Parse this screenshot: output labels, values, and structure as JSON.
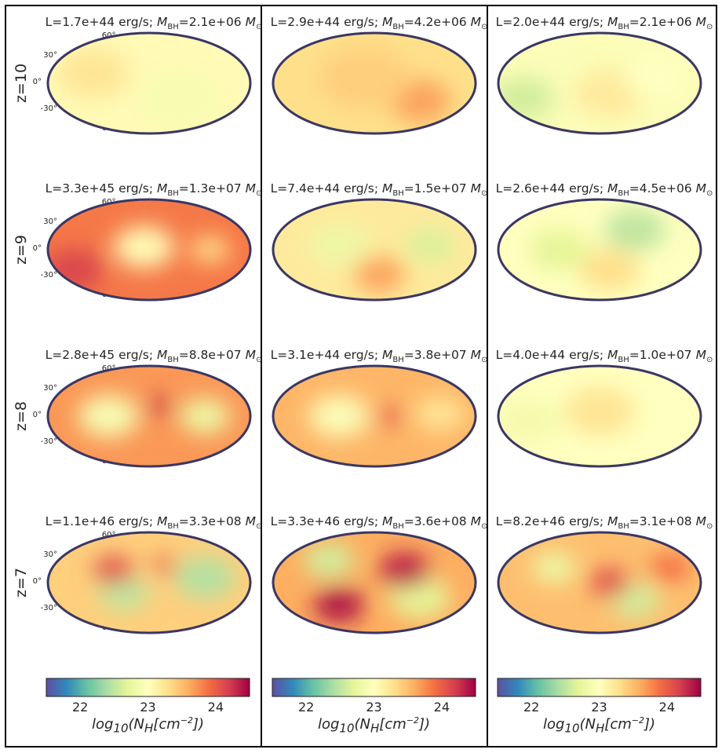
{
  "chart_data": {
    "type": "heatmap",
    "projection": "mollweide",
    "row_labels": [
      "z=10",
      "z=9",
      "z=8",
      "z=7"
    ],
    "latitude_ticks": [
      "60°",
      "30°",
      "0°",
      "-30°",
      "-60°"
    ],
    "colormap": {
      "name": "Spectral_r",
      "range": [
        21.5,
        24.5
      ],
      "ticks": [
        "22",
        "23",
        "24"
      ],
      "tick_values": [
        22,
        23,
        24
      ],
      "label": "log10(NH[cm^-2])",
      "label_parts": {
        "prefix": "log",
        "sub": "10",
        "open": "(N",
        "sub2": "H",
        "mid": "[cm",
        "sup": "−2",
        "close": "])"
      },
      "stops": [
        "#5e4fa2",
        "#3288bd",
        "#66c2a5",
        "#abdda4",
        "#e6f598",
        "#ffffbf",
        "#fee08b",
        "#fdae61",
        "#f46d43",
        "#d53e4f",
        "#9e0142"
      ]
    },
    "panels": [
      {
        "row": 0,
        "col": 0,
        "L": "L=1.7e+44 erg/s;",
        "MBH": "=2.1e+06",
        "msun": "M",
        "sun": "⊙",
        "base": 23.05,
        "blobs": [
          {
            "x": -0.55,
            "y": 0.2,
            "r": 0.35,
            "v": 0.2
          },
          {
            "x": 0.3,
            "y": -0.3,
            "r": 0.4,
            "v": -0.15
          }
        ]
      },
      {
        "row": 0,
        "col": 1,
        "L": "L=2.9e+44 erg/s;",
        "MBH": "=4.2e+06",
        "msun": "M",
        "sun": "⊙",
        "base": 23.3,
        "blobs": [
          {
            "x": 0.45,
            "y": -0.35,
            "r": 0.3,
            "v": 0.35
          },
          {
            "x": -0.1,
            "y": 0.1,
            "r": 0.45,
            "v": 0.1
          }
        ]
      },
      {
        "row": 0,
        "col": 2,
        "L": "L=2.0e+44 erg/s;",
        "MBH": "=2.1e+06",
        "msun": "M",
        "sun": "⊙",
        "base": 22.95,
        "blobs": [
          {
            "x": 0.1,
            "y": -0.2,
            "r": 0.35,
            "v": 0.25
          },
          {
            "x": -0.75,
            "y": -0.3,
            "r": 0.3,
            "v": -0.35
          },
          {
            "x": 0.55,
            "y": 0.1,
            "r": 0.3,
            "v": 0.05
          }
        ]
      },
      {
        "row": 1,
        "col": 0,
        "L": "L=3.3e+45 erg/s;",
        "MBH": "=1.3e+07",
        "msun": "M",
        "sun": "⊙",
        "base": 23.85,
        "blobs": [
          {
            "x": -0.05,
            "y": 0.05,
            "r": 0.3,
            "v": -0.8
          },
          {
            "x": 0.6,
            "y": 0.0,
            "r": 0.2,
            "v": -0.5
          },
          {
            "x": -0.75,
            "y": -0.4,
            "r": 0.3,
            "v": 0.3
          }
        ]
      },
      {
        "row": 1,
        "col": 1,
        "L": "L=7.4e+44 erg/s;",
        "MBH": "=1.5e+07",
        "msun": "M",
        "sun": "⊙",
        "base": 23.2,
        "blobs": [
          {
            "x": -0.35,
            "y": 0.1,
            "r": 0.3,
            "v": -0.4
          },
          {
            "x": 0.55,
            "y": 0.1,
            "r": 0.25,
            "v": -0.55
          },
          {
            "x": 0.05,
            "y": -0.5,
            "r": 0.25,
            "v": 0.45
          }
        ]
      },
      {
        "row": 1,
        "col": 2,
        "L": "L=2.6e+44 erg/s;",
        "MBH": "=4.5e+06",
        "msun": "M",
        "sun": "⊙",
        "base": 23.0,
        "blobs": [
          {
            "x": 0.35,
            "y": 0.4,
            "r": 0.3,
            "v": -0.5
          },
          {
            "x": -0.4,
            "y": 0.0,
            "r": 0.3,
            "v": -0.3
          },
          {
            "x": 0.1,
            "y": -0.4,
            "r": 0.3,
            "v": 0.3
          }
        ]
      },
      {
        "row": 2,
        "col": 0,
        "L": "L=2.8e+45 erg/s;",
        "MBH": "=8.8e+07",
        "msun": "M",
        "sun": "⊙",
        "base": 23.7,
        "blobs": [
          {
            "x": -0.4,
            "y": 0.0,
            "r": 0.3,
            "v": -0.8
          },
          {
            "x": 0.55,
            "y": 0.0,
            "r": 0.25,
            "v": -0.9
          },
          {
            "x": 0.1,
            "y": 0.2,
            "r": 0.12,
            "v": 0.6
          }
        ]
      },
      {
        "row": 2,
        "col": 1,
        "L": "L=3.1e+44 erg/s;",
        "MBH": "=3.8e+07",
        "msun": "M",
        "sun": "⊙",
        "base": 23.55,
        "blobs": [
          {
            "x": -0.35,
            "y": 0.0,
            "r": 0.3,
            "v": -0.6
          },
          {
            "x": 0.15,
            "y": 0.0,
            "r": 0.12,
            "v": 0.5
          },
          {
            "x": 0.65,
            "y": 0.05,
            "r": 0.25,
            "v": -0.3
          }
        ]
      },
      {
        "row": 2,
        "col": 2,
        "L": "L=4.0e+44 erg/s;",
        "MBH": "=1.0e+07",
        "msun": "M",
        "sun": "⊙",
        "base": 23.0,
        "blobs": [
          {
            "x": 0.0,
            "y": 0.1,
            "r": 0.35,
            "v": 0.25
          },
          {
            "x": -0.7,
            "y": -0.1,
            "r": 0.3,
            "v": -0.15
          }
        ]
      },
      {
        "row": 3,
        "col": 0,
        "L": "L=1.1e+46 erg/s;",
        "MBH": "=3.3e+08",
        "msun": "M",
        "sun": "⊙",
        "base": 23.4,
        "blobs": [
          {
            "x": -0.25,
            "y": -0.2,
            "r": 0.25,
            "v": -0.9
          },
          {
            "x": 0.55,
            "y": 0.1,
            "r": 0.3,
            "v": -0.95
          },
          {
            "x": -0.35,
            "y": 0.25,
            "r": 0.2,
            "v": 0.7
          },
          {
            "x": 0.15,
            "y": 0.35,
            "r": 0.12,
            "v": 0.6
          }
        ]
      },
      {
        "row": 3,
        "col": 1,
        "L": "L=3.3e+46 erg/s;",
        "MBH": "=3.6e+08",
        "msun": "M",
        "sun": "⊙",
        "base": 23.6,
        "blobs": [
          {
            "x": -0.45,
            "y": 0.45,
            "r": 0.25,
            "v": -1.0
          },
          {
            "x": 0.45,
            "y": -0.3,
            "r": 0.3,
            "v": -0.9
          },
          {
            "x": 0.3,
            "y": 0.25,
            "r": 0.25,
            "v": 0.75
          },
          {
            "x": -0.35,
            "y": -0.45,
            "r": 0.25,
            "v": 0.8
          }
        ]
      },
      {
        "row": 3,
        "col": 2,
        "L": "L=8.2e+46 erg/s;",
        "MBH": "=3.1e+08",
        "msun": "M",
        "sun": "⊙",
        "base": 23.5,
        "blobs": [
          {
            "x": -0.45,
            "y": 0.3,
            "r": 0.22,
            "v": -0.7
          },
          {
            "x": 0.35,
            "y": -0.35,
            "r": 0.25,
            "v": -0.9
          },
          {
            "x": 0.1,
            "y": 0.0,
            "r": 0.2,
            "v": 0.6
          },
          {
            "x": 0.7,
            "y": 0.3,
            "r": 0.2,
            "v": 0.4
          }
        ]
      }
    ]
  }
}
